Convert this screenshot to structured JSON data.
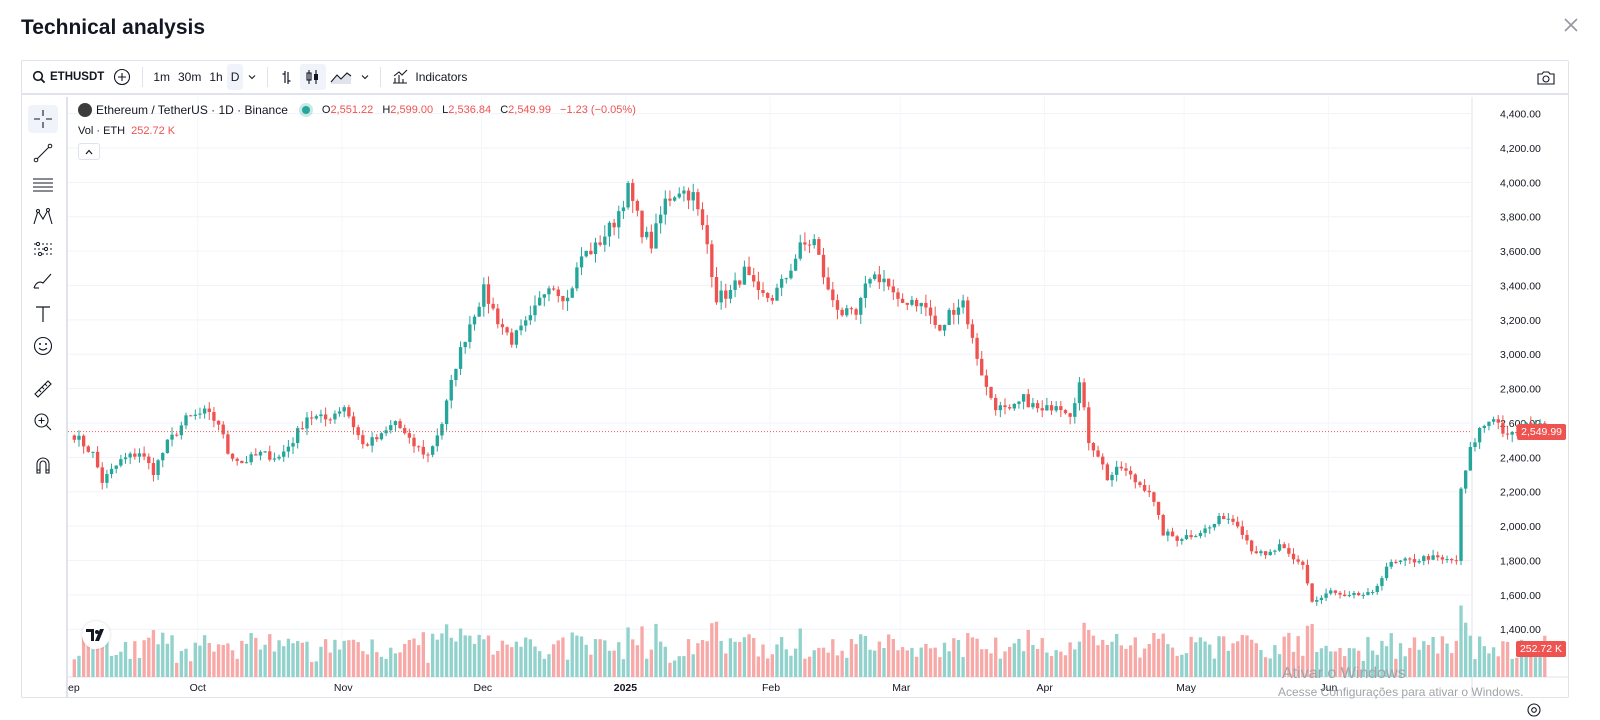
{
  "modal": {
    "title": "Technical analysis",
    "close_icon": "close-icon"
  },
  "toolbar": {
    "symbol": "ETHUSDT",
    "timeframes": [
      "1m",
      "30m",
      "1h",
      "D"
    ],
    "active_timeframe": "D",
    "indicators_label": "Indicators"
  },
  "legend": {
    "title": "Ethereum / TetherUS · 1D · Binance",
    "open_label": "O",
    "open": "2,551.22",
    "high_label": "H",
    "high": "2,599.00",
    "low_label": "L",
    "low": "2,536.84",
    "close_label": "C",
    "close": "2,549.99",
    "change": "−1.23 (−0.05%)",
    "vol_label": "Vol · ETH",
    "vol_value": "252.72 K"
  },
  "colors": {
    "up": "#26a69a",
    "down": "#ef5350",
    "up_vol": "#92d2cc",
    "down_vol": "#f7a9a7"
  },
  "price_tag": "2,549.99",
  "volume_tag": "252.72 K",
  "watermark": {
    "line1": "Ativar o Windows",
    "line2": "Acesse Configurações para ativar o Windows."
  },
  "chart_data": {
    "type": "candlestick",
    "interval": "1D",
    "y_ticks": [
      "4,400.00",
      "4,200.00",
      "4,000.00",
      "3,800.00",
      "3,600.00",
      "3,400.00",
      "3,200.00",
      "3,000.00",
      "2,800.00",
      "2,600.00",
      "2,400.00",
      "2,200.00",
      "2,000.00",
      "1,800.00",
      "1,600.00",
      "1,400.00"
    ],
    "ylim": [
      1250,
      4450
    ],
    "x_ticks": [
      "ep",
      "Oct",
      "Nov",
      "Dec",
      "2025",
      "Feb",
      "Mar",
      "Apr",
      "May",
      "Jun"
    ],
    "last_price": 2549.99,
    "anchors": [
      [
        0,
        2530
      ],
      [
        4,
        2420
      ],
      [
        6,
        2260
      ],
      [
        10,
        2380
      ],
      [
        14,
        2430
      ],
      [
        17,
        2320
      ],
      [
        20,
        2480
      ],
      [
        24,
        2620
      ],
      [
        28,
        2660
      ],
      [
        31,
        2600
      ],
      [
        33,
        2430
      ],
      [
        36,
        2370
      ],
      [
        40,
        2420
      ],
      [
        44,
        2400
      ],
      [
        47,
        2500
      ],
      [
        50,
        2640
      ],
      [
        54,
        2620
      ],
      [
        58,
        2700
      ],
      [
        62,
        2470
      ],
      [
        66,
        2520
      ],
      [
        69,
        2610
      ],
      [
        72,
        2490
      ],
      [
        76,
        2410
      ],
      [
        79,
        2600
      ],
      [
        82,
        2940
      ],
      [
        85,
        3180
      ],
      [
        88,
        3370
      ],
      [
        91,
        3200
      ],
      [
        94,
        3080
      ],
      [
        98,
        3200
      ],
      [
        102,
        3420
      ],
      [
        106,
        3320
      ],
      [
        109,
        3570
      ],
      [
        112,
        3620
      ],
      [
        116,
        3770
      ],
      [
        119,
        3960
      ],
      [
        122,
        3720
      ],
      [
        124,
        3640
      ],
      [
        127,
        3890
      ],
      [
        130,
        3960
      ],
      [
        133,
        3920
      ],
      [
        136,
        3640
      ],
      [
        138,
        3330
      ],
      [
        141,
        3360
      ],
      [
        144,
        3480
      ],
      [
        147,
        3340
      ],
      [
        150,
        3330
      ],
      [
        153,
        3450
      ],
      [
        156,
        3620
      ],
      [
        159,
        3660
      ],
      [
        162,
        3360
      ],
      [
        165,
        3240
      ],
      [
        168,
        3220
      ],
      [
        171,
        3460
      ],
      [
        174,
        3440
      ],
      [
        177,
        3290
      ],
      [
        180,
        3320
      ],
      [
        183,
        3270
      ],
      [
        186,
        3120
      ],
      [
        188,
        3240
      ],
      [
        191,
        3310
      ],
      [
        193,
        3080
      ],
      [
        196,
        2800
      ],
      [
        198,
        2700
      ],
      [
        201,
        2660
      ],
      [
        204,
        2740
      ],
      [
        208,
        2660
      ],
      [
        211,
        2720
      ],
      [
        214,
        2660
      ],
      [
        216,
        2830
      ],
      [
        218,
        2500
      ],
      [
        220,
        2420
      ],
      [
        222,
        2280
      ],
      [
        225,
        2340
      ],
      [
        228,
        2260
      ],
      [
        231,
        2210
      ],
      [
        234,
        1960
      ],
      [
        237,
        1930
      ],
      [
        240,
        1950
      ],
      [
        244,
        1990
      ],
      [
        247,
        2060
      ],
      [
        250,
        2020
      ],
      [
        253,
        1870
      ],
      [
        256,
        1820
      ],
      [
        259,
        1880
      ],
      [
        262,
        1800
      ],
      [
        264,
        1780
      ],
      [
        266,
        1560
      ],
      [
        268,
        1580
      ],
      [
        270,
        1620
      ],
      [
        273,
        1580
      ],
      [
        276,
        1600
      ],
      [
        279,
        1600
      ],
      [
        282,
        1770
      ],
      [
        285,
        1790
      ],
      [
        288,
        1800
      ],
      [
        291,
        1820
      ],
      [
        294,
        1800
      ],
      [
        297,
        1800
      ],
      [
        298,
        2200
      ],
      [
        300,
        2440
      ],
      [
        302,
        2560
      ],
      [
        305,
        2640
      ],
      [
        308,
        2510
      ],
      [
        311,
        2570
      ],
      [
        314,
        2600
      ],
      [
        316,
        2550
      ]
    ],
    "volume_max_eth": 2000000
  }
}
